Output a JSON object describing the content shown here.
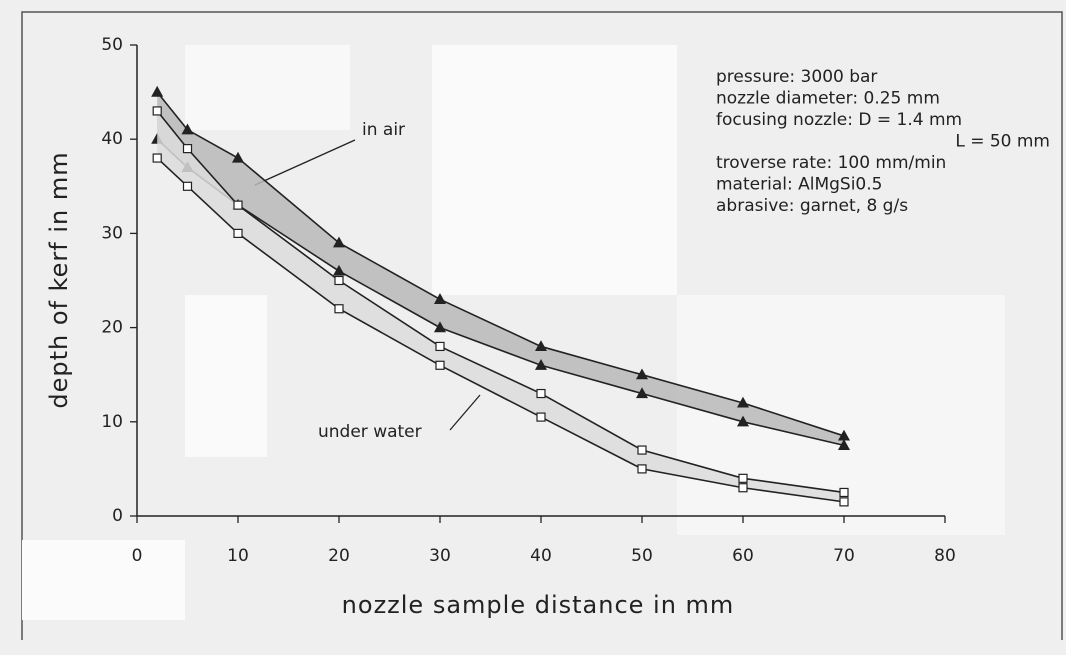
{
  "chart_data": {
    "type": "band-line",
    "x_label": "nozzle sample distance in mm",
    "y_label": "depth of kerf in mm",
    "xlim": [
      0,
      80
    ],
    "ylim": [
      0,
      50
    ],
    "xticks": [
      0,
      10,
      20,
      30,
      40,
      50,
      60,
      70,
      80
    ],
    "yticks": [
      0,
      10,
      20,
      30,
      40,
      50
    ],
    "x": [
      2,
      5,
      10,
      20,
      30,
      40,
      50,
      60,
      70
    ],
    "bands": [
      {
        "label": "in air",
        "marker": "triangle",
        "fill": "#b9b9b9",
        "upper": [
          45,
          41,
          38,
          29,
          23,
          18,
          15,
          12,
          8.5
        ],
        "lower": [
          40,
          37,
          33,
          26,
          20,
          16,
          13,
          10,
          7.5
        ]
      },
      {
        "label": "under water",
        "marker": "square",
        "fill": "#dcdcdc",
        "upper": [
          43,
          39,
          33,
          25,
          18,
          13,
          7,
          4,
          2.5
        ],
        "lower": [
          38,
          35,
          30,
          22,
          16,
          10.5,
          5,
          3,
          1.5
        ]
      }
    ],
    "info": [
      "pressure: 3000 bar",
      "nozzle diameter: 0.25 mm",
      "focusing nozzle: D = 1.4 mm",
      "L = 50 mm",
      "troverse rate: 100 mm/min",
      "material: AlMgSi0.5",
      "abrasive: garnet, 8 g/s"
    ]
  }
}
